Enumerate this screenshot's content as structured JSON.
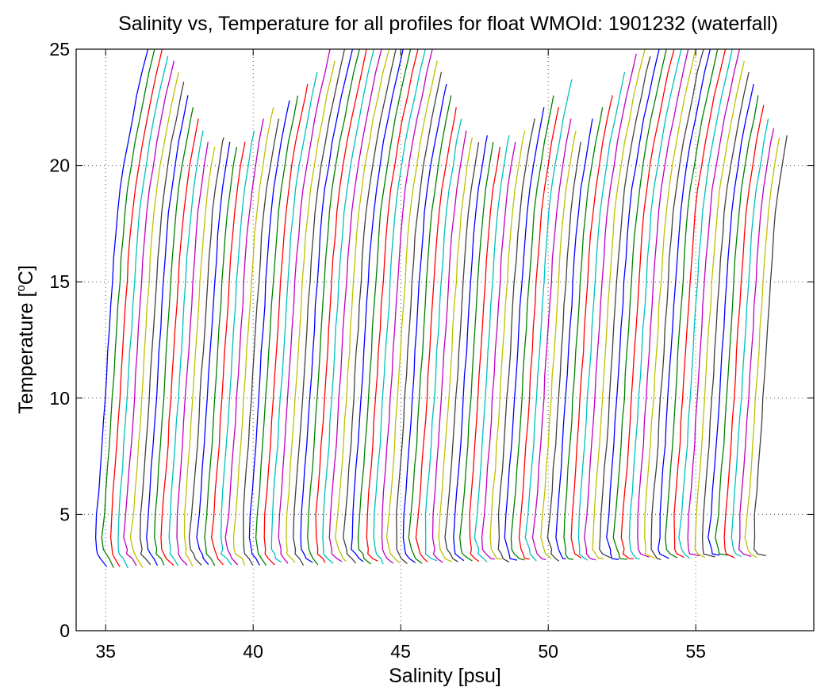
{
  "chart_data": {
    "type": "line",
    "title": "Salinity vs, Temperature for all profiles for float WMOId: 1901232 (waterfall)",
    "xlabel": "Salinity [psu]",
    "ylabel_main": "Temperature [",
    "ylabel_sup": "o",
    "ylabel_end": "C]",
    "xlim": [
      34.0,
      59.0
    ],
    "ylim": [
      0,
      25
    ],
    "x_ticks": [
      35,
      40,
      45,
      50,
      55
    ],
    "y_ticks": [
      0,
      5,
      10,
      15,
      20,
      25
    ],
    "grid": true,
    "grid_style": "dotted",
    "color_cycle": [
      "#0000ff",
      "#008000",
      "#ff0000",
      "#00bfbf",
      "#bf00bf",
      "#bfbf00",
      "#404040"
    ],
    "series_description": "waterfall of temperature-salinity profiles; each profile offset in salinity",
    "profile_count": 91,
    "first_profile_x": 34.7,
    "last_profile_x": 57.0,
    "profile_offset_step": 0.2,
    "profile_shape_t": [
      2.7,
      3.1,
      3.3,
      3.5,
      4.0,
      5.0,
      6.0,
      7.0,
      8.0,
      9.0,
      10.0,
      11.0,
      12.0,
      13.0,
      14.0,
      15.0,
      16.0,
      17.0,
      18.0,
      19.0,
      20.0,
      21.0,
      22.0,
      23.0,
      24.0,
      25.0
    ],
    "profile_shape_ds": [
      0.33,
      0.17,
      0.05,
      0.0,
      -0.04,
      0.0,
      0.06,
      0.12,
      0.18,
      0.23,
      0.28,
      0.33,
      0.38,
      0.43,
      0.48,
      0.53,
      0.58,
      0.64,
      0.71,
      0.8,
      0.92,
      1.05,
      1.2,
      1.36,
      1.53,
      1.72
    ],
    "profile_top_temperatures": [
      25.0,
      25.0,
      25.0,
      24.7,
      24.5,
      24.0,
      23.6,
      23.0,
      22.5,
      22.0,
      21.5,
      21.0,
      20.8,
      21.2,
      21.0,
      20.8,
      21.0,
      21.5,
      22.0,
      22.5,
      22.0,
      22.8,
      23.0,
      23.5,
      24.0,
      25.0,
      24.5,
      25.0,
      25.0,
      25.0,
      25.0,
      25.0,
      25.0,
      25.0,
      25.0,
      25.0,
      25.0,
      25.0,
      25.0,
      25.0,
      24.5,
      24.0,
      23.5,
      23.0,
      22.5,
      22.0,
      21.5,
      21.2,
      21.0,
      21.3,
      21.0,
      20.8,
      21.3,
      21.0,
      21.5,
      22.0,
      22.5,
      23.0,
      22.5,
      23.7,
      22.0,
      21.5,
      21.0,
      22.0,
      22.5,
      23.0,
      24.0,
      24.8,
      25.0,
      24.7,
      25.0,
      25.0,
      25.0,
      25.0,
      25.0,
      25.0,
      25.0,
      25.0,
      25.0,
      25.0,
      25.0,
      25.0,
      24.5,
      24.0,
      23.5,
      23.0,
      22.6,
      22.0,
      21.6,
      21.2,
      21.3
    ]
  }
}
